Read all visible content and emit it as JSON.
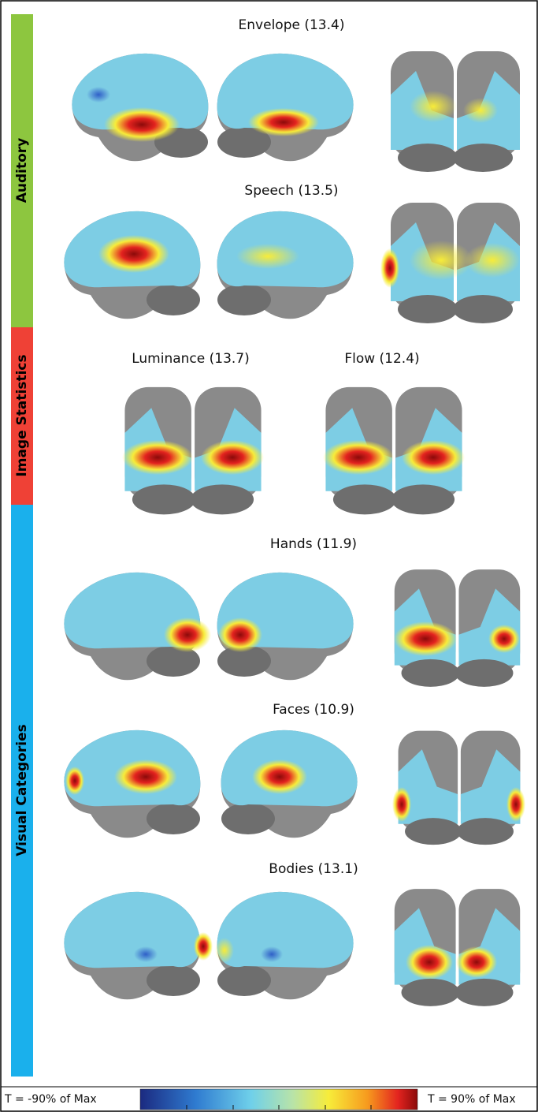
{
  "sidebar": [
    {
      "label": "Auditory",
      "color": "#8dc63f"
    },
    {
      "label": "Image Statistics",
      "color": "#ef4136"
    },
    {
      "label": "Visual Categories",
      "color": "#1ab0ec"
    }
  ],
  "panels": [
    {
      "title": "Envelope (13.4)"
    },
    {
      "title": "Speech (13.5)"
    },
    {
      "title": "Luminance (13.7)"
    },
    {
      "title": "Flow (12.4)"
    },
    {
      "title": "Hands (11.9)"
    },
    {
      "title": "Faces (10.9)"
    },
    {
      "title": "Bodies (13.1)"
    }
  ],
  "colorbar": {
    "min_label": "T = -90% of Max",
    "max_label": "T = 90% of Max"
  }
}
